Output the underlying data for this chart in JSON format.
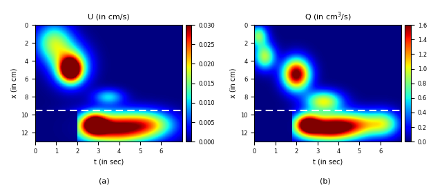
{
  "title_U": "U (in cm/s)",
  "title_Q": "Q (in cm$^3$/s)",
  "xlabel": "t (in sec)",
  "ylabel": "x (in cm)",
  "label_a": "(a)",
  "label_b": "(b)",
  "t_min": 0,
  "t_max": 7,
  "x_min": 0,
  "x_max": 13,
  "x_ticks": [
    0,
    2,
    4,
    6,
    8,
    10,
    12
  ],
  "t_ticks": [
    0,
    1,
    2,
    3,
    4,
    5,
    6
  ],
  "U_vmin": 0,
  "U_vmax": 0.03,
  "Q_vmin": 0,
  "Q_vmax": 1.6,
  "U_cticks": [
    0,
    0.005,
    0.01,
    0.015,
    0.02,
    0.025,
    0.03
  ],
  "Q_cticks": [
    0,
    0.2,
    0.4,
    0.6,
    0.8,
    1.0,
    1.2,
    1.4,
    1.6
  ],
  "dashed_line_x": 9.5,
  "background_color": "#ffffff",
  "dashed_color": "#ffffff"
}
